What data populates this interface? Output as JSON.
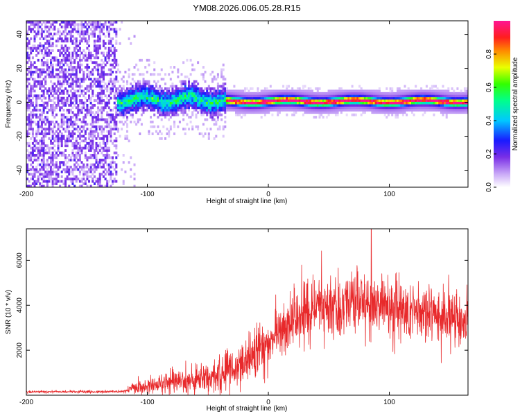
{
  "title": "YM08.2026.006.05.28.R15",
  "colors": {
    "snr_line": "#e8292b",
    "axis": "#000000",
    "spectrogram_low": "#6a2ee0",
    "spectrogram_mid": "#1ed0ff",
    "spectrogram_high": "#ff2a2a"
  },
  "chart_data": [
    {
      "type": "heatmap",
      "name": "spectrogram",
      "xlabel": "Height of straight line (km)",
      "ylabel": "Frequency (Hz)",
      "xlim": [
        -200,
        165
      ],
      "ylim": [
        -50,
        48
      ],
      "x_ticks": [
        -200,
        -100,
        0,
        100
      ],
      "y_ticks": [
        40,
        20,
        0,
        -20,
        -40
      ],
      "colormap": "rainbow",
      "colorbar": {
        "label": "Normalized spectral amplitude",
        "range": [
          0,
          1
        ],
        "ticks": [
          "0.0",
          "0.2",
          "0.4",
          "0.6",
          "0.8"
        ]
      },
      "regions": [
        {
          "x_range": [
            -200,
            -125
          ],
          "freq_range": [
            -50,
            48
          ],
          "amplitude": 0.1,
          "description": "broadband noise"
        },
        {
          "x_range": [
            -125,
            -35
          ],
          "freq_center": 1,
          "freq_spread": 8,
          "amplitude": 0.45
        },
        {
          "x_range": [
            -35,
            165
          ],
          "freq_center": 0,
          "freq_spread": 3,
          "amplitude": 0.85
        }
      ]
    },
    {
      "type": "line",
      "name": "snr",
      "xlabel": "Height of straight line (km)",
      "ylabel": "SNR (10 * v/v)",
      "xlim": [
        -200,
        165
      ],
      "ylim": [
        0,
        7400
      ],
      "x_ticks": [
        -200,
        -100,
        0,
        100
      ],
      "y_ticks": [
        2000,
        4000,
        6000
      ],
      "envelope": {
        "x": [
          -200,
          -140,
          -120,
          -112,
          -100,
          -80,
          -60,
          -40,
          -25,
          -15,
          0,
          10,
          25,
          40,
          60,
          80,
          100,
          120,
          140,
          165
        ],
        "mean": [
          150,
          150,
          170,
          280,
          420,
          560,
          740,
          950,
          1200,
          1700,
          2300,
          2900,
          3500,
          3900,
          4050,
          4150,
          3900,
          3700,
          3500,
          3250
        ],
        "spread": [
          60,
          60,
          70,
          300,
          400,
          500,
          650,
          800,
          900,
          1100,
          1200,
          1300,
          1300,
          1400,
          1500,
          1600,
          1600,
          1500,
          1300,
          1100
        ]
      },
      "peak": {
        "x": 85,
        "y": 7400
      }
    }
  ]
}
